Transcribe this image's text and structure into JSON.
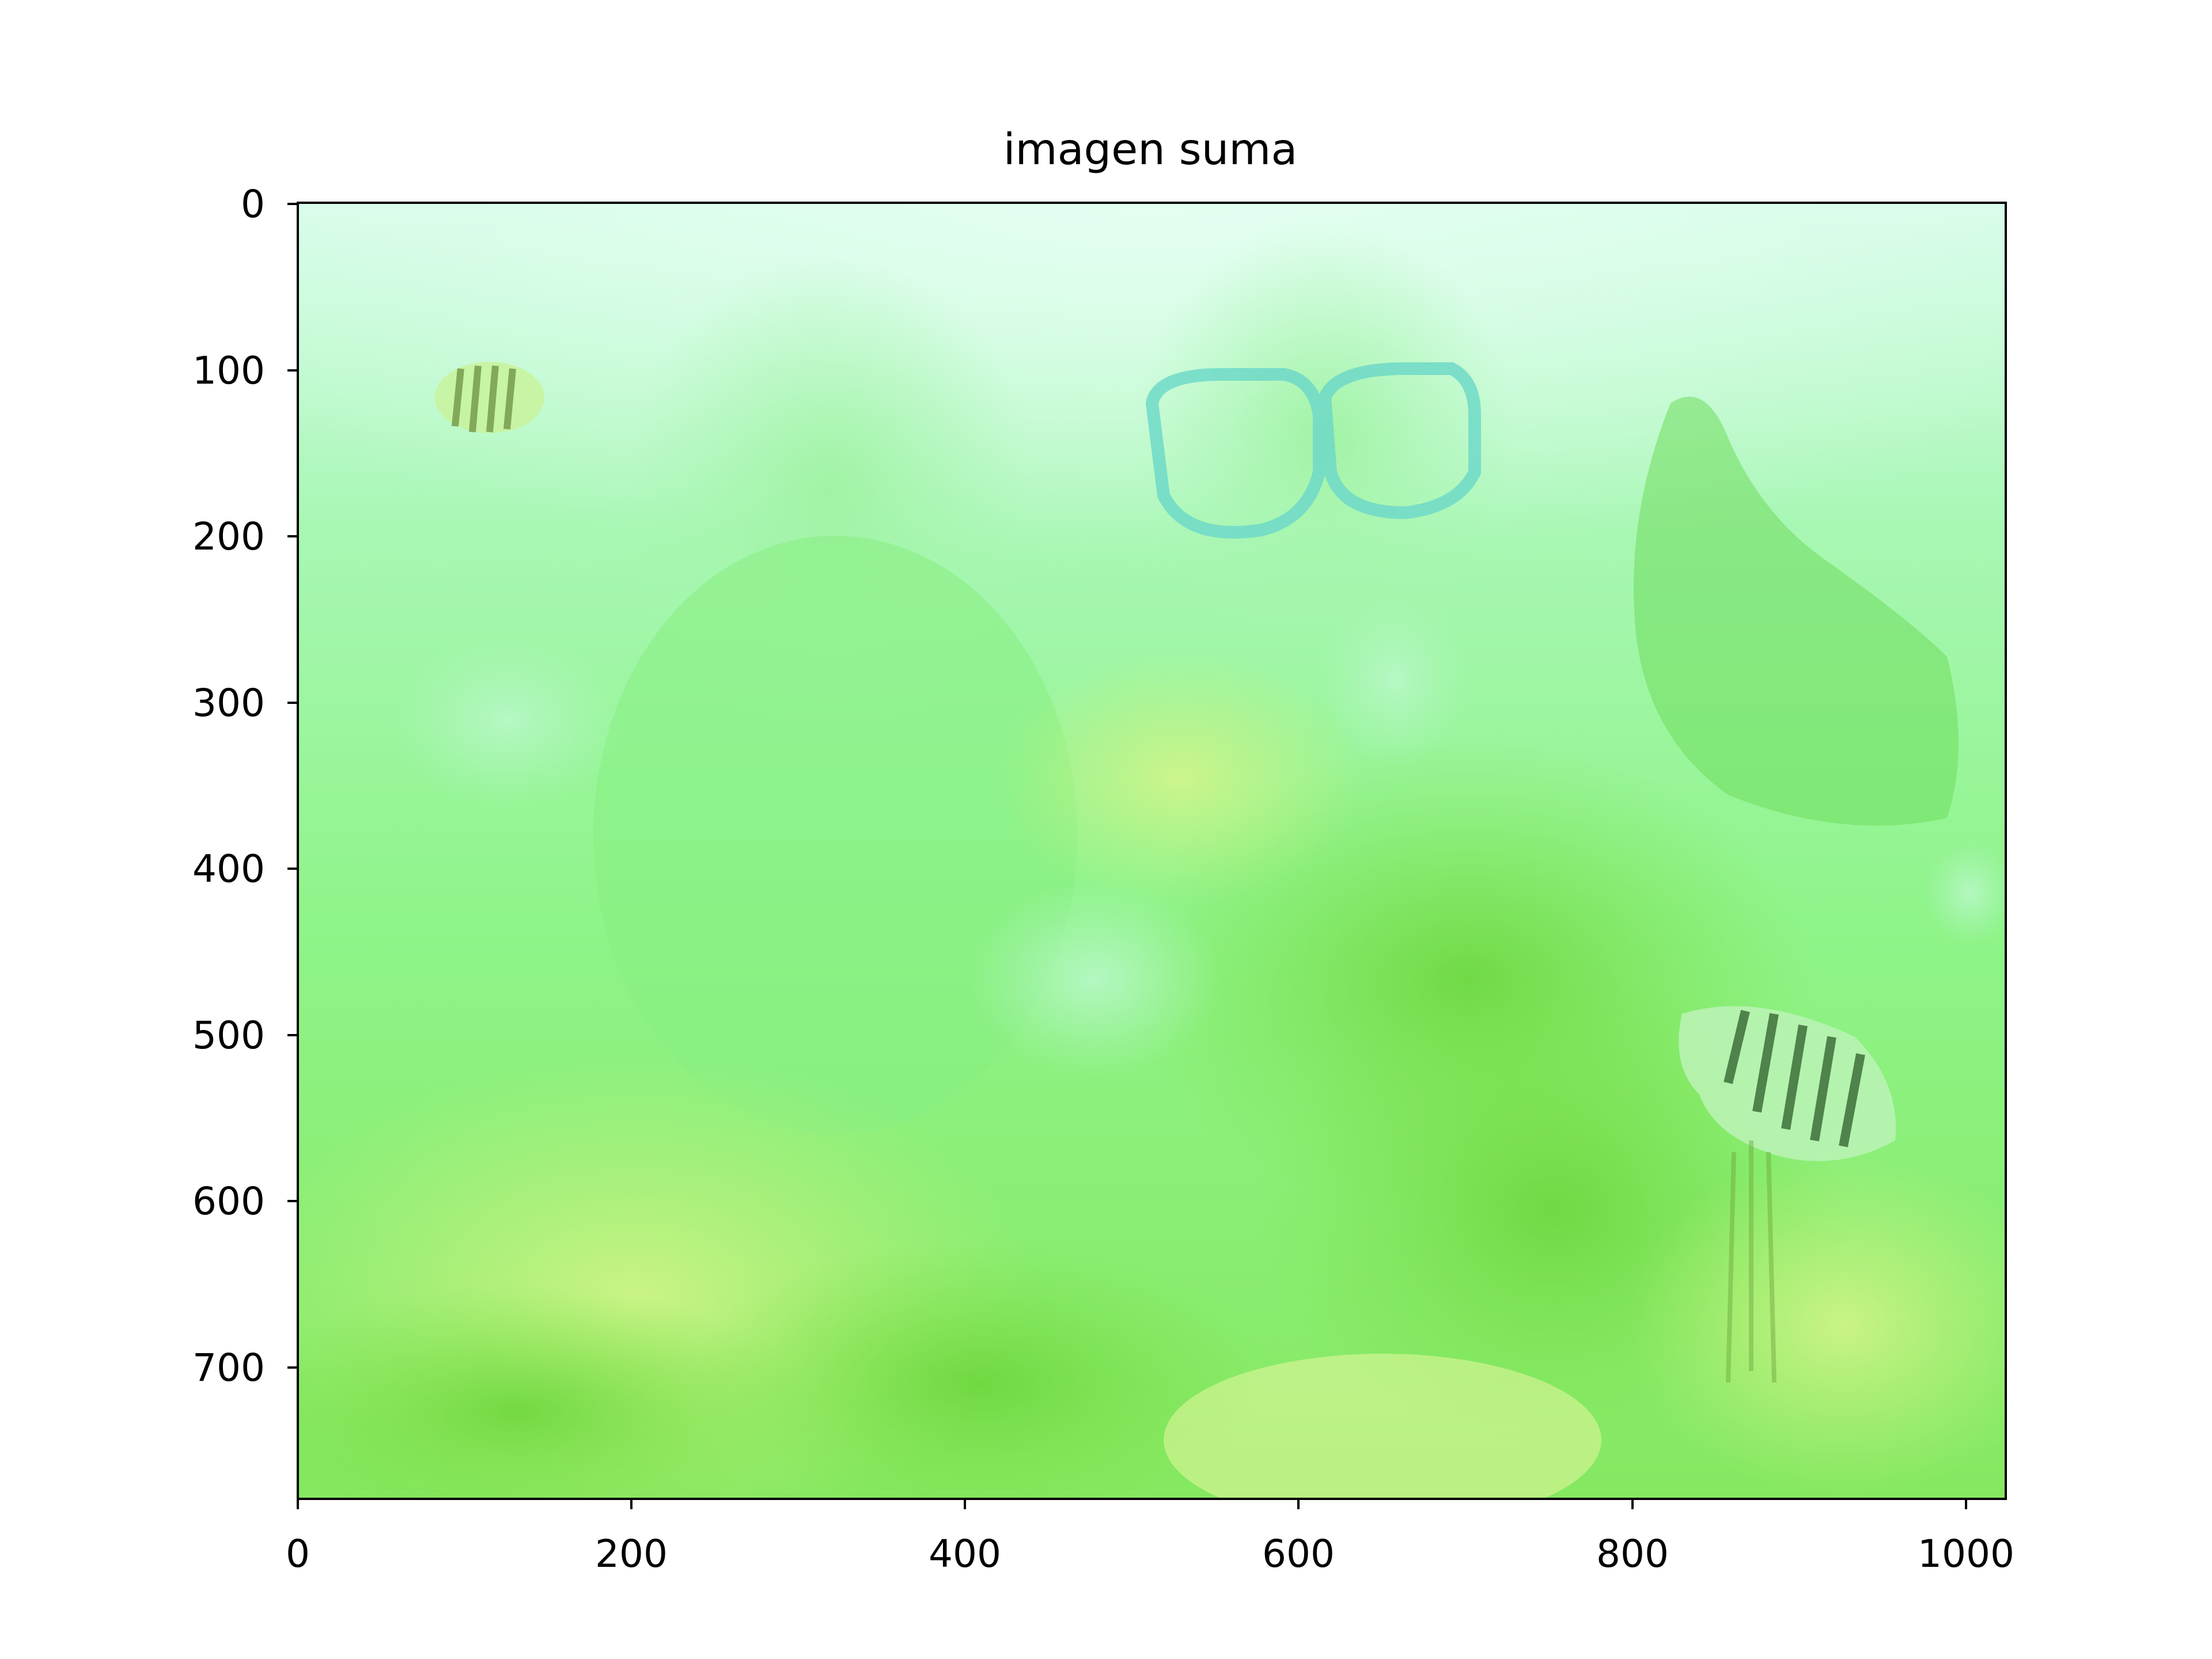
{
  "figure": {
    "title": "imagen suma",
    "x_ticks": [
      "0",
      "200",
      "400",
      "600",
      "800",
      "1000"
    ],
    "y_ticks": [
      "0",
      "100",
      "200",
      "300",
      "400",
      "500",
      "600",
      "700"
    ]
  },
  "image": {
    "x_range": [
      0,
      1024
    ],
    "y_range": [
      0,
      780
    ],
    "tint": "#7df07a",
    "content": [
      "reef",
      "diver-with-mask",
      "striped-fish",
      "pale-fish"
    ]
  },
  "colors": {
    "water_top": "#d2fbe6",
    "water_mid": "#8ff58c",
    "reef_dark": "#6edb3c",
    "reef_light": "#bff07a",
    "mask": "#6fd9c8"
  }
}
